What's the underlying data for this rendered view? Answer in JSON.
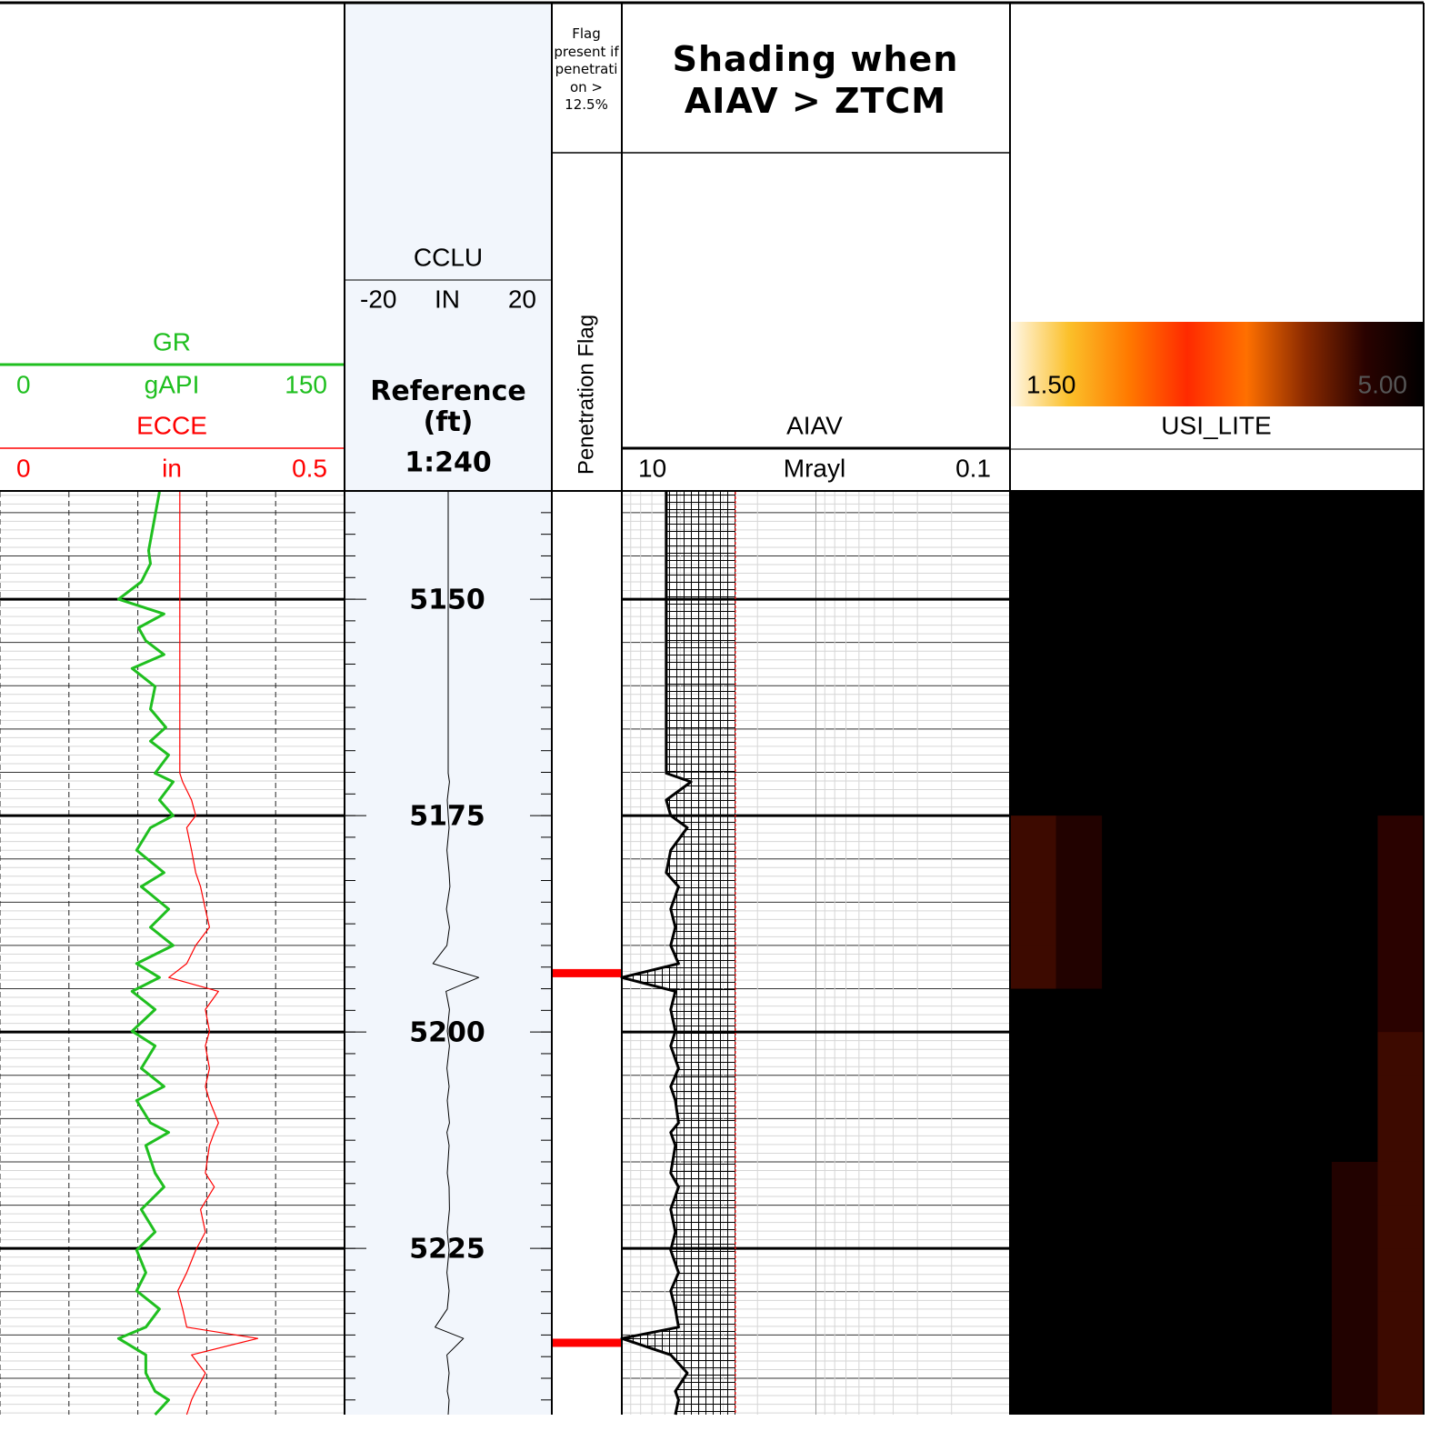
{
  "chart_data": [
    {
      "type": "line",
      "ylim": [
        5137.6,
        5244.2
      ],
      "xticks": [
        0,
        30,
        60,
        90,
        120,
        150
      ],
      "grid": true,
      "y": [
        5137.6,
        5144.4,
        5145.9,
        5148.0,
        5150.0,
        5151.7,
        5153.3,
        5154.8,
        5156.4,
        5158.0,
        5160.1,
        5162.7,
        5164.8,
        5166.4,
        5168.0,
        5170.1,
        5171.1,
        5173.2,
        5175.0,
        5176.4,
        5179.0,
        5181.6,
        5183.2,
        5185.8,
        5187.9,
        5190.0,
        5192.1,
        5193.7,
        5195.3,
        5197.4,
        5199.9,
        5201.6,
        5204.2,
        5206.3,
        5207.9,
        5210.5,
        5211.6,
        5213.1,
        5216.3,
        5217.9,
        5220.5,
        5223.1,
        5225.2,
        5227.8,
        5229.9,
        5232.0,
        5234.1,
        5235.4,
        5237.3,
        5239.4,
        5241.5,
        5242.5,
        5244.2
      ],
      "series": [
        {
          "name": "GR",
          "unit": "gAPI",
          "color": "#1fbf1f",
          "xlim": [
            0,
            150
          ],
          "values": [
            69.4,
            64.7,
            65.5,
            61.5,
            51.6,
            71.4,
            60.3,
            63.5,
            71.4,
            57.5,
            67.5,
            65.5,
            72.2,
            65.5,
            73.4,
            67.5,
            75.4,
            69.4,
            75.4,
            65.5,
            59.5,
            71.4,
            61.5,
            73.4,
            65.5,
            75.4,
            59.5,
            69.4,
            57.5,
            67.5,
            57.5,
            67.5,
            61.5,
            71.4,
            59.5,
            65.5,
            73.4,
            63.5,
            67.5,
            71.4,
            61.5,
            67.5,
            59.5,
            63.5,
            59.5,
            69.4,
            63.5,
            51.6,
            63.5,
            63.5,
            67.5,
            73.4,
            67.5
          ]
        },
        {
          "name": "ECCE",
          "unit": "in",
          "color": "#ff0000",
          "xlim": [
            0,
            0.5
          ],
          "values": [
            0.261,
            0.261,
            0.261,
            0.261,
            0.261,
            0.261,
            0.261,
            0.261,
            0.261,
            0.261,
            0.261,
            0.261,
            0.261,
            0.261,
            0.261,
            0.261,
            0.265,
            0.278,
            0.284,
            0.271,
            0.278,
            0.284,
            0.291,
            0.298,
            0.304,
            0.284,
            0.271,
            0.245,
            0.317,
            0.298,
            0.304,
            0.298,
            0.304,
            0.298,
            0.304,
            0.317,
            0.311,
            0.304,
            0.298,
            0.311,
            0.291,
            0.298,
            0.284,
            0.271,
            0.258,
            0.265,
            0.271,
            0.374,
            0.278,
            0.298,
            0.284,
            0.278,
            0.271
          ]
        }
      ]
    },
    {
      "type": "depth",
      "title": "Reference (ft)",
      "scale": "1:240",
      "background": "#f2f6fc",
      "ylim": [
        5137.6,
        5244.2
      ],
      "yticks": [
        5150,
        5175,
        5200,
        5225
      ],
      "tick_step": 2.5,
      "minor_step": 1,
      "major_step": 5,
      "y": [
        5137.6,
        5144.4,
        5145.9,
        5148.0,
        5150.0,
        5151.7,
        5153.3,
        5154.8,
        5156.4,
        5158.0,
        5160.1,
        5162.7,
        5164.8,
        5166.4,
        5168.0,
        5170.1,
        5171.1,
        5173.2,
        5175.0,
        5176.4,
        5179.0,
        5181.6,
        5183.2,
        5185.8,
        5187.9,
        5190.0,
        5192.1,
        5193.7,
        5195.3,
        5197.4,
        5199.9,
        5201.6,
        5204.2,
        5206.3,
        5207.9,
        5210.5,
        5211.6,
        5213.1,
        5216.3,
        5217.9,
        5220.5,
        5223.1,
        5225.2,
        5227.8,
        5229.9,
        5232.0,
        5234.1,
        5235.4,
        5237.3,
        5239.4,
        5241.5,
        5242.5,
        5244.2
      ],
      "series": [
        {
          "name": "CCLU",
          "unit": "IN",
          "color": "#000000",
          "xlim": [
            -20,
            20
          ],
          "values": [
            0,
            0,
            0,
            0,
            0,
            0,
            0,
            0,
            0,
            0,
            0,
            0,
            0,
            0,
            0,
            0,
            0.3,
            -0.2,
            0,
            0.2,
            -0.3,
            0.2,
            0.4,
            -0.4,
            0.3,
            -0.3,
            -3.5,
            7.0,
            -0.5,
            0.3,
            -0.2,
            0.3,
            -0.3,
            0.2,
            -0.2,
            0.3,
            -0.3,
            0.2,
            -0.2,
            0.2,
            0.3,
            -0.2,
            0.2,
            -0.3,
            0.2,
            -0.2,
            -3.0,
            3.5,
            -0.3,
            0.2,
            -0.2,
            0.2,
            0
          ]
        }
      ]
    },
    {
      "type": "flag",
      "title": "Flag present if penetration > 12.5%",
      "label": "Penetration Flag",
      "color": "#ff0000",
      "ylim": [
        5137.6,
        5244.2
      ],
      "y": [
        5193.2,
        5235.9
      ]
    },
    {
      "type": "line",
      "title": "Shading when AIAV > ZTCM",
      "log_scale": true,
      "ylim": [
        5137.6,
        5244.2
      ],
      "xticks": [
        10,
        1,
        0.1
      ],
      "shade_limit": 2.6,
      "y": [
        5137.6,
        5144.4,
        5145.9,
        5148.0,
        5150.0,
        5151.7,
        5153.3,
        5154.8,
        5156.4,
        5158.0,
        5160.1,
        5162.7,
        5164.8,
        5166.4,
        5168.0,
        5170.1,
        5171.1,
        5173.2,
        5175.0,
        5176.4,
        5179.0,
        5181.6,
        5183.2,
        5185.8,
        5187.9,
        5190.0,
        5192.1,
        5193.7,
        5195.3,
        5197.4,
        5199.9,
        5201.6,
        5204.2,
        5206.3,
        5207.9,
        5210.5,
        5211.6,
        5213.1,
        5216.3,
        5217.9,
        5220.5,
        5223.1,
        5225.2,
        5227.8,
        5229.9,
        5232.0,
        5234.1,
        5235.4,
        5237.3,
        5239.4,
        5241.5,
        5242.5,
        5244.2
      ],
      "series": [
        {
          "name": "AIAV",
          "unit": "Mrayl",
          "color": "#000000",
          "xlim": [
            10,
            0.1
          ],
          "values": [
            5.9,
            5.9,
            5.9,
            5.9,
            5.9,
            5.9,
            5.9,
            5.9,
            5.9,
            5.9,
            5.9,
            5.9,
            5.9,
            5.9,
            5.9,
            5.9,
            4.4,
            5.9,
            5.6,
            4.6,
            5.6,
            5.9,
            5.1,
            5.6,
            5.3,
            5.6,
            5.1,
            10,
            5.3,
            5.6,
            5.3,
            5.6,
            5.1,
            5.6,
            5.3,
            5.1,
            5.6,
            5.3,
            5.6,
            5.1,
            5.6,
            5.3,
            5.6,
            5.1,
            5.6,
            5.3,
            5.1,
            10,
            5.6,
            4.6,
            5.3,
            5.1,
            5.3
          ]
        }
      ]
    },
    {
      "type": "image",
      "name": "USI_LITE",
      "clim": [
        1.5,
        5.0
      ],
      "colorbar_ticks": [
        {
          "value": 1.5,
          "label": "1.50"
        },
        {
          "value": 5.0,
          "label": "5.00"
        }
      ],
      "colormap": [
        "#fff8ea",
        "#fbc02a",
        "#ff7a00",
        "#ff2a00",
        "#ff7000",
        "#8a2a00",
        "#2a0200",
        "#000000"
      ],
      "ylim": [
        5137.6,
        5244.2
      ],
      "y_edges": [
        5135,
        5140,
        5145,
        5150,
        5155,
        5160,
        5165,
        5170,
        5175,
        5180,
        5185,
        5190,
        5195,
        5200,
        5205,
        5210,
        5215,
        5220,
        5225,
        5230,
        5235,
        5240,
        5245
      ],
      "z": [
        [
          5,
          5,
          5,
          5,
          5,
          5,
          5,
          5,
          5
        ],
        [
          5,
          5,
          5,
          5,
          5,
          5,
          5,
          5,
          5
        ],
        [
          5,
          5,
          5,
          5,
          5,
          5,
          5,
          5,
          5
        ],
        [
          5,
          5,
          5,
          5,
          5,
          5,
          5,
          5,
          5
        ],
        [
          5,
          5,
          5,
          5,
          5,
          5,
          5,
          5,
          5
        ],
        [
          5,
          5,
          5,
          5,
          5,
          5,
          5,
          5,
          5
        ],
        [
          5,
          5,
          5,
          5,
          5,
          5,
          5,
          5,
          5
        ],
        [
          5,
          5,
          5,
          5,
          5,
          5,
          5,
          5,
          5
        ],
        [
          4.4,
          4.6,
          5,
          5,
          5,
          5,
          5,
          5,
          4.5
        ],
        [
          4.4,
          4.6,
          5,
          5,
          5,
          5,
          5,
          5,
          4.5
        ],
        [
          4.4,
          4.6,
          5,
          5,
          5,
          5,
          5,
          5,
          4.5
        ],
        [
          4.4,
          4.6,
          5,
          5,
          5,
          5,
          5,
          5,
          4.5
        ],
        [
          5,
          5,
          5,
          5,
          5,
          5,
          5,
          5,
          4.5
        ],
        [
          5,
          5,
          5,
          5,
          5,
          5,
          5,
          5,
          4.4
        ],
        [
          5,
          5,
          5,
          5,
          5,
          5,
          5,
          5,
          4.4
        ],
        [
          5,
          5,
          5,
          5,
          5,
          5,
          5,
          5,
          4.4
        ],
        [
          5,
          5,
          5,
          5,
          5,
          5,
          5,
          4.6,
          4.4
        ],
        [
          5,
          5,
          5,
          5,
          5,
          5,
          5,
          4.6,
          4.4
        ],
        [
          5,
          5,
          5,
          5,
          5,
          5,
          5,
          4.6,
          4.4
        ],
        [
          5,
          5,
          5,
          5,
          5,
          5,
          5,
          4.6,
          4.4
        ],
        [
          5,
          5,
          5,
          5,
          5,
          5,
          5,
          4.6,
          4.4
        ],
        [
          5,
          5,
          5,
          5,
          5,
          5,
          5,
          4.6,
          4.4
        ]
      ]
    }
  ]
}
